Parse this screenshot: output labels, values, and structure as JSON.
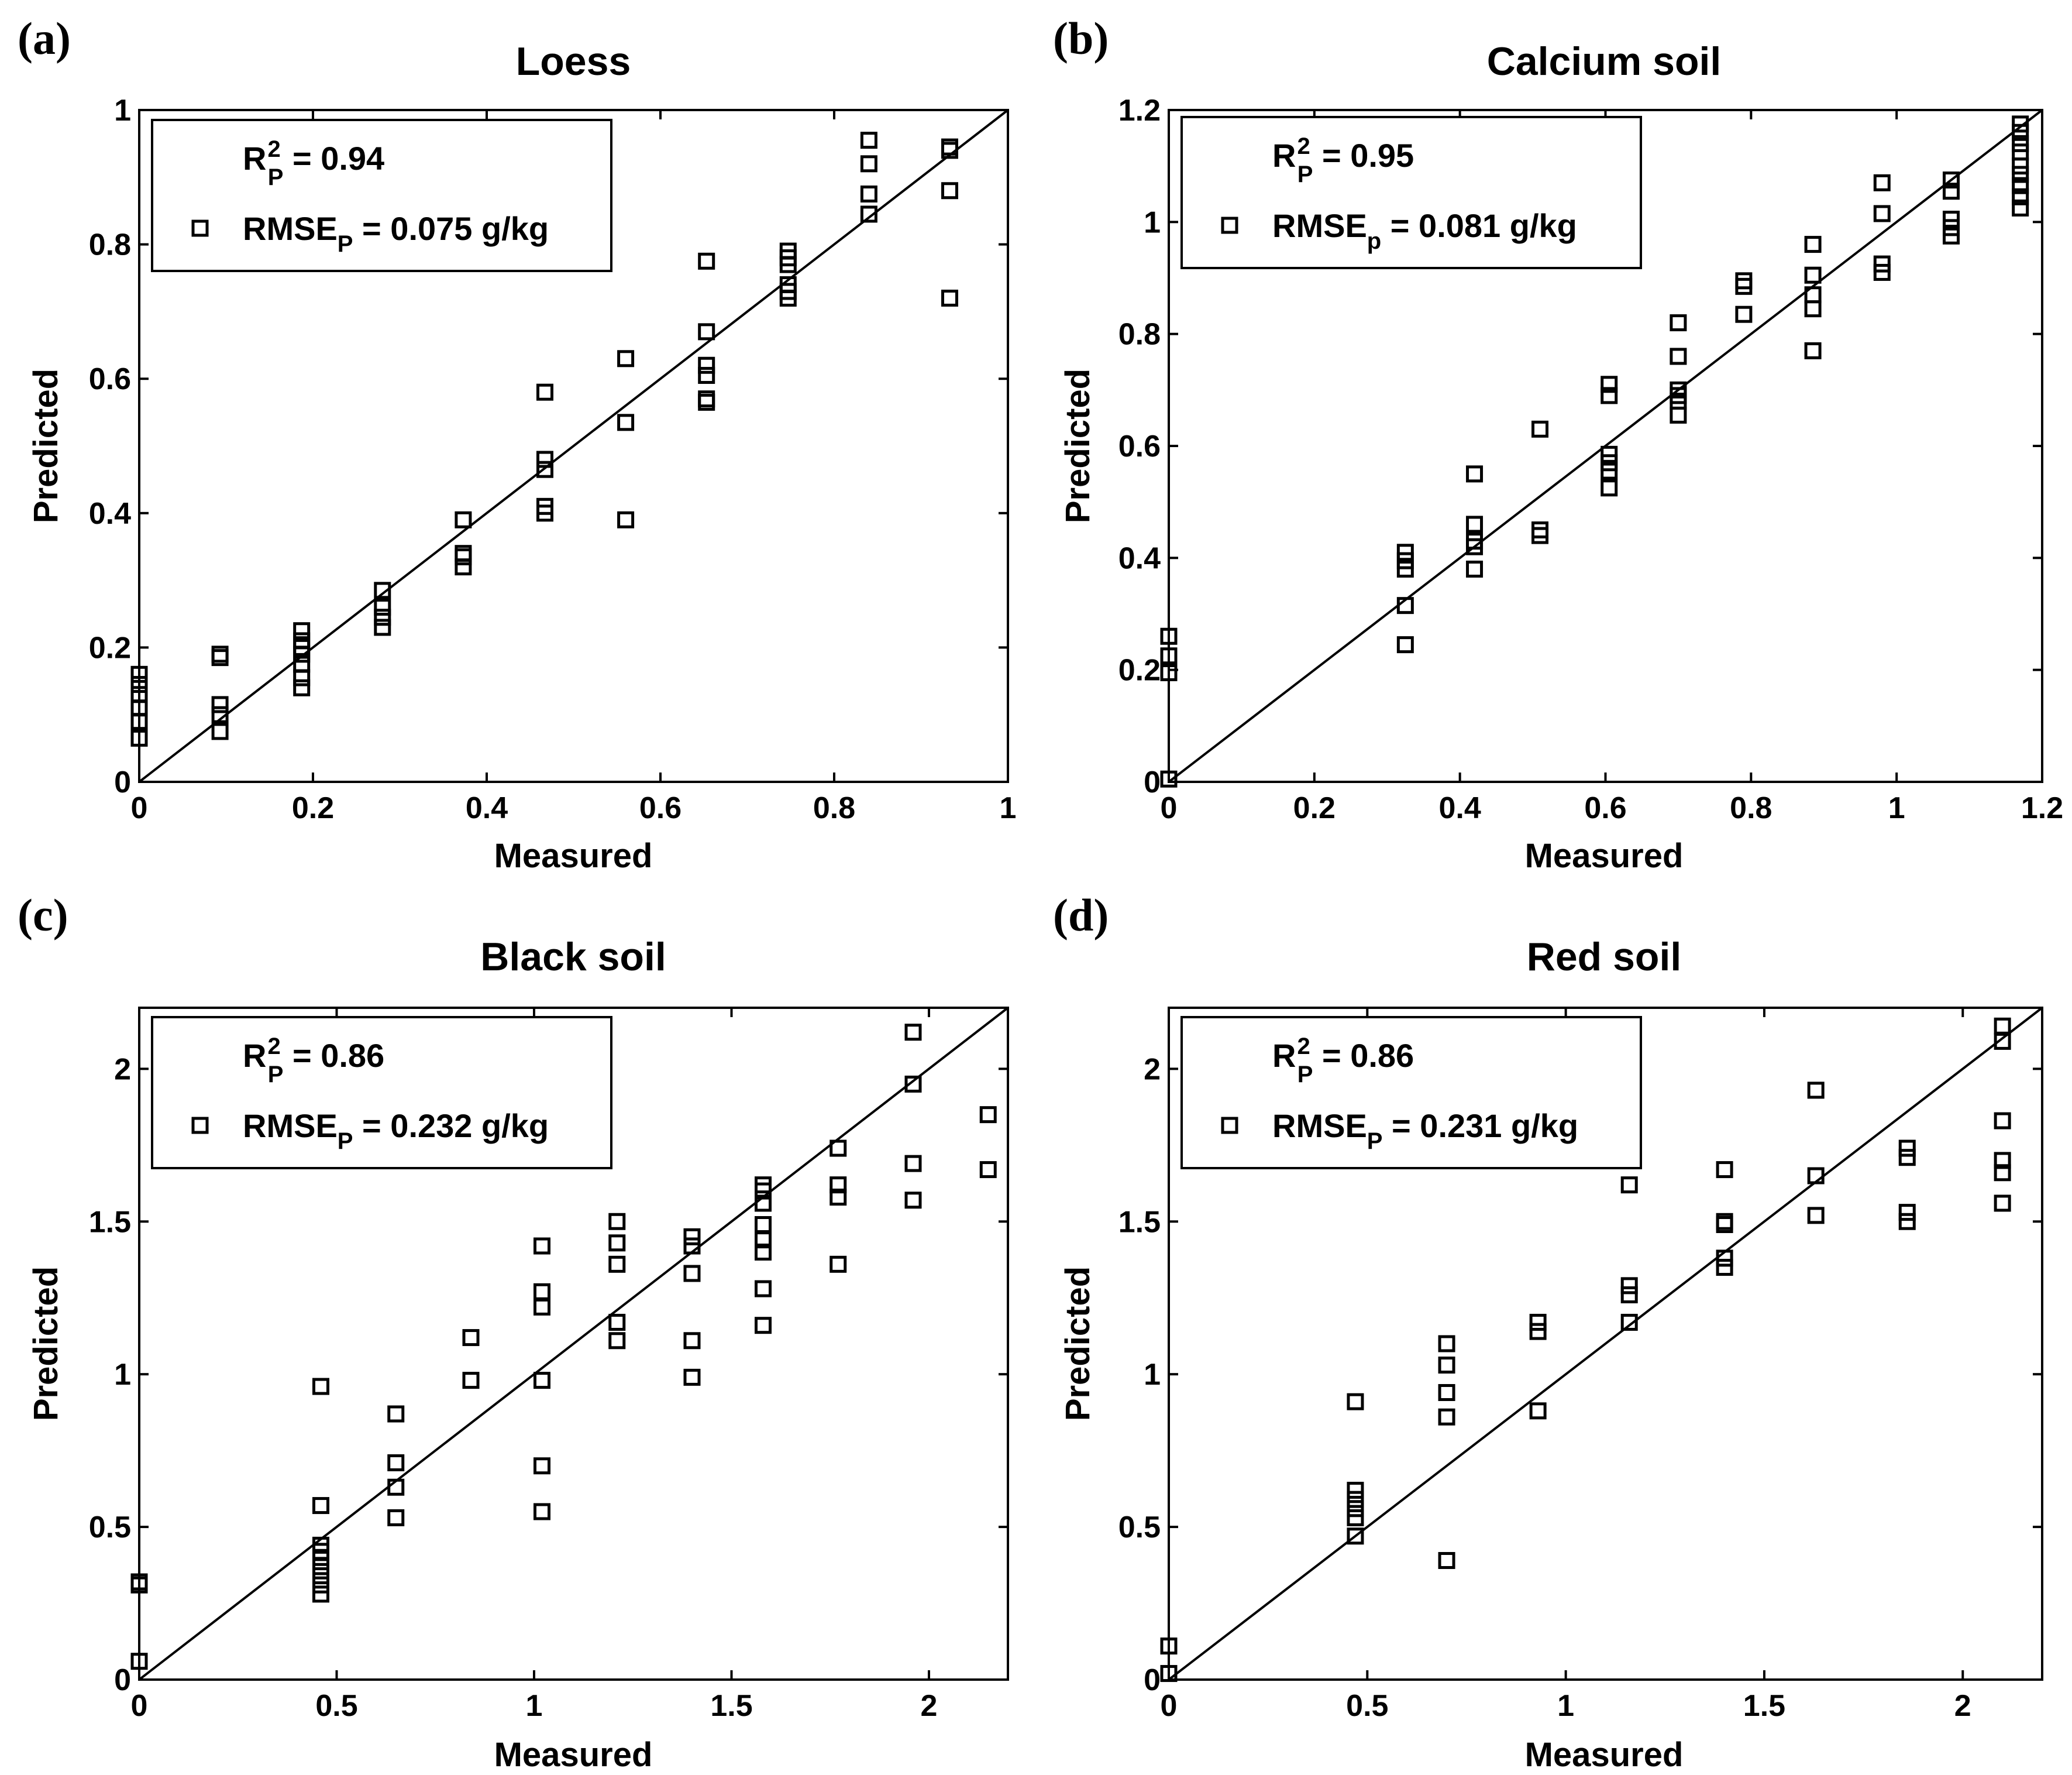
{
  "chart_data": [
    {
      "panel_label": "(a)",
      "title": "Loess",
      "type": "scatter",
      "xlabel": "Measured",
      "ylabel": "Predicted",
      "xlim": [
        0,
        1
      ],
      "ylim": [
        0,
        1
      ],
      "xticks": [
        "0",
        "0.2",
        "0.4",
        "0.6",
        "0.8",
        "1"
      ],
      "yticks": [
        "0",
        "0.2",
        "0.4",
        "0.6",
        "0.8",
        "1"
      ],
      "xtick_values": [
        0,
        0.2,
        0.4,
        0.6,
        0.8,
        1
      ],
      "ytick_values": [
        0,
        0.2,
        0.4,
        0.6,
        0.8,
        1
      ],
      "legend": {
        "r2_main": "R",
        "r2_sup": "2",
        "r2_sub": "P",
        "r2_rest": " = 0.94",
        "rmse_main": "RMSE",
        "rmse_sub": "P",
        "rmse_rest": " = 0.075 g/kg"
      },
      "fit_line": [
        [
          0,
          0
        ],
        [
          1,
          1
        ]
      ],
      "points": [
        [
          0,
          0.065
        ],
        [
          0,
          0.09
        ],
        [
          0,
          0.11
        ],
        [
          0,
          0.13
        ],
        [
          0,
          0.145
        ],
        [
          0,
          0.16
        ],
        [
          0.093,
          0.075
        ],
        [
          0.093,
          0.1
        ],
        [
          0.093,
          0.115
        ],
        [
          0.093,
          0.185
        ],
        [
          0.093,
          0.19
        ],
        [
          0.187,
          0.14
        ],
        [
          0.187,
          0.155
        ],
        [
          0.187,
          0.175
        ],
        [
          0.187,
          0.19
        ],
        [
          0.187,
          0.2
        ],
        [
          0.187,
          0.21
        ],
        [
          0.187,
          0.225
        ],
        [
          0.28,
          0.23
        ],
        [
          0.28,
          0.245
        ],
        [
          0.28,
          0.26
        ],
        [
          0.28,
          0.285
        ],
        [
          0.373,
          0.32
        ],
        [
          0.373,
          0.335
        ],
        [
          0.373,
          0.34
        ],
        [
          0.373,
          0.39
        ],
        [
          0.467,
          0.4
        ],
        [
          0.467,
          0.41
        ],
        [
          0.467,
          0.465
        ],
        [
          0.467,
          0.48
        ],
        [
          0.467,
          0.58
        ],
        [
          0.56,
          0.39
        ],
        [
          0.56,
          0.535
        ],
        [
          0.56,
          0.63
        ],
        [
          0.653,
          0.565
        ],
        [
          0.653,
          0.57
        ],
        [
          0.653,
          0.605
        ],
        [
          0.653,
          0.62
        ],
        [
          0.653,
          0.67
        ],
        [
          0.653,
          0.775
        ],
        [
          0.747,
          0.72
        ],
        [
          0.747,
          0.73
        ],
        [
          0.747,
          0.74
        ],
        [
          0.747,
          0.77
        ],
        [
          0.747,
          0.78
        ],
        [
          0.747,
          0.79
        ],
        [
          0.84,
          0.845
        ],
        [
          0.84,
          0.875
        ],
        [
          0.84,
          0.92
        ],
        [
          0.84,
          0.955
        ],
        [
          0.933,
          0.72
        ],
        [
          0.933,
          0.88
        ],
        [
          0.933,
          0.94
        ],
        [
          0.933,
          0.945
        ]
      ]
    },
    {
      "panel_label": "(b)",
      "title": "Calcium soil",
      "type": "scatter",
      "xlabel": "Measured",
      "ylabel": "Predicted",
      "xlim": [
        0,
        1.2
      ],
      "ylim": [
        0,
        1.2
      ],
      "xticks": [
        "0",
        "0.2",
        "0.4",
        "0.6",
        "0.8",
        "1",
        "1.2"
      ],
      "yticks": [
        "0",
        "0.2",
        "0.4",
        "0.6",
        "0.8",
        "1",
        "1.2"
      ],
      "xtick_values": [
        0,
        0.2,
        0.4,
        0.6,
        0.8,
        1,
        1.2
      ],
      "ytick_values": [
        0,
        0.2,
        0.4,
        0.6,
        0.8,
        1,
        1.2
      ],
      "legend": {
        "r2_main": "R",
        "r2_sup": "2",
        "r2_sub": "P",
        "r2_rest": " = 0.95",
        "rmse_main": "RMSE",
        "rmse_sub": "p",
        "rmse_rest": " = 0.081 g/kg"
      },
      "fit_line": [
        [
          0,
          0
        ],
        [
          1.2,
          1.2
        ]
      ],
      "points": [
        [
          0,
          0.005
        ],
        [
          0,
          0.195
        ],
        [
          0,
          0.225
        ],
        [
          0,
          0.26
        ],
        [
          0.325,
          0.245
        ],
        [
          0.325,
          0.315
        ],
        [
          0.325,
          0.38
        ],
        [
          0.325,
          0.395
        ],
        [
          0.325,
          0.41
        ],
        [
          0.42,
          0.38
        ],
        [
          0.42,
          0.42
        ],
        [
          0.42,
          0.43
        ],
        [
          0.42,
          0.46
        ],
        [
          0.42,
          0.55
        ],
        [
          0.51,
          0.44
        ],
        [
          0.51,
          0.45
        ],
        [
          0.51,
          0.63
        ],
        [
          0.605,
          0.525
        ],
        [
          0.605,
          0.555
        ],
        [
          0.605,
          0.57
        ],
        [
          0.605,
          0.585
        ],
        [
          0.605,
          0.69
        ],
        [
          0.605,
          0.71
        ],
        [
          0.7,
          0.655
        ],
        [
          0.7,
          0.68
        ],
        [
          0.7,
          0.69
        ],
        [
          0.7,
          0.7
        ],
        [
          0.7,
          0.76
        ],
        [
          0.7,
          0.82
        ],
        [
          0.79,
          0.835
        ],
        [
          0.79,
          0.885
        ],
        [
          0.79,
          0.895
        ],
        [
          0.885,
          0.77
        ],
        [
          0.885,
          0.845
        ],
        [
          0.885,
          0.87
        ],
        [
          0.885,
          0.905
        ],
        [
          0.885,
          0.96
        ],
        [
          0.98,
          0.91
        ],
        [
          0.98,
          0.925
        ],
        [
          0.98,
          1.015
        ],
        [
          0.98,
          1.07
        ],
        [
          1.075,
          0.975
        ],
        [
          1.075,
          0.99
        ],
        [
          1.075,
          1.005
        ],
        [
          1.075,
          1.055
        ],
        [
          1.075,
          1.075
        ],
        [
          1.17,
          1.025
        ],
        [
          1.17,
          1.045
        ],
        [
          1.17,
          1.065
        ],
        [
          1.17,
          1.085
        ],
        [
          1.17,
          1.1
        ],
        [
          1.17,
          1.125
        ],
        [
          1.17,
          1.14
        ],
        [
          1.17,
          1.16
        ],
        [
          1.17,
          1.175
        ]
      ]
    },
    {
      "panel_label": "(c)",
      "title": "Black soil",
      "type": "scatter",
      "xlabel": "Measured",
      "ylabel": "Predicted",
      "xlim": [
        0,
        2.2
      ],
      "ylim": [
        0,
        2.2
      ],
      "xticks": [
        "0",
        "0.5",
        "1",
        "1.5",
        "2"
      ],
      "yticks": [
        "0",
        "0.5",
        "1",
        "1.5",
        "2"
      ],
      "xtick_values": [
        0,
        0.5,
        1,
        1.5,
        2
      ],
      "ytick_values": [
        0,
        0.5,
        1,
        1.5,
        2
      ],
      "legend": {
        "r2_main": "R",
        "r2_sup": "2",
        "r2_sub": "P",
        "r2_rest": " = 0.86",
        "rmse_main": "RMSE",
        "rmse_sub": "P",
        "rmse_rest": " = 0.232 g/kg"
      },
      "fit_line": [
        [
          0,
          0
        ],
        [
          2.2,
          2.2
        ]
      ],
      "points": [
        [
          0,
          0.06
        ],
        [
          0,
          0.31
        ],
        [
          0,
          0.32
        ],
        [
          0.46,
          0.28
        ],
        [
          0.46,
          0.31
        ],
        [
          0.46,
          0.34
        ],
        [
          0.46,
          0.37
        ],
        [
          0.46,
          0.4
        ],
        [
          0.46,
          0.42
        ],
        [
          0.46,
          0.44
        ],
        [
          0.46,
          0.57
        ],
        [
          0.46,
          0.96
        ],
        [
          0.65,
          0.53
        ],
        [
          0.65,
          0.63
        ],
        [
          0.65,
          0.71
        ],
        [
          0.65,
          0.87
        ],
        [
          0.84,
          0.98
        ],
        [
          0.84,
          1.12
        ],
        [
          1.02,
          0.55
        ],
        [
          1.02,
          0.7
        ],
        [
          1.02,
          0.98
        ],
        [
          1.02,
          1.22
        ],
        [
          1.02,
          1.27
        ],
        [
          1.02,
          1.42
        ],
        [
          1.21,
          1.11
        ],
        [
          1.21,
          1.17
        ],
        [
          1.21,
          1.36
        ],
        [
          1.21,
          1.43
        ],
        [
          1.21,
          1.5
        ],
        [
          1.4,
          0.99
        ],
        [
          1.4,
          1.11
        ],
        [
          1.4,
          1.33
        ],
        [
          1.4,
          1.42
        ],
        [
          1.4,
          1.45
        ],
        [
          1.58,
          1.16
        ],
        [
          1.58,
          1.28
        ],
        [
          1.58,
          1.4
        ],
        [
          1.58,
          1.44
        ],
        [
          1.58,
          1.49
        ],
        [
          1.58,
          1.56
        ],
        [
          1.58,
          1.6
        ],
        [
          1.58,
          1.62
        ],
        [
          1.77,
          1.36
        ],
        [
          1.77,
          1.58
        ],
        [
          1.77,
          1.62
        ],
        [
          1.77,
          1.74
        ],
        [
          1.96,
          1.57
        ],
        [
          1.96,
          1.69
        ],
        [
          1.96,
          1.95
        ],
        [
          1.96,
          2.12
        ],
        [
          2.15,
          1.67
        ],
        [
          2.15,
          1.85
        ]
      ]
    },
    {
      "panel_label": "(d)",
      "title": "Red soil",
      "type": "scatter",
      "xlabel": "Measured",
      "ylabel": "Predicted",
      "xlim": [
        0,
        2.2
      ],
      "ylim": [
        0,
        2.2
      ],
      "xticks": [
        "0",
        "0.5",
        "1",
        "1.5",
        "2"
      ],
      "yticks": [
        "0",
        "0.5",
        "1",
        "1.5",
        "2"
      ],
      "xtick_values": [
        0,
        0.5,
        1,
        1.5,
        2
      ],
      "ytick_values": [
        0,
        0.5,
        1,
        1.5,
        2
      ],
      "legend": {
        "r2_main": "R",
        "r2_sup": "2",
        "r2_sub": "P",
        "r2_rest": " = 0.86",
        "rmse_main": "RMSE",
        "rmse_sub": "P",
        "rmse_rest": " = 0.231 g/kg"
      },
      "fit_line": [
        [
          0,
          0
        ],
        [
          2.2,
          2.2
        ]
      ],
      "points": [
        [
          0,
          0.02
        ],
        [
          0,
          0.11
        ],
        [
          0.47,
          0.47
        ],
        [
          0.47,
          0.53
        ],
        [
          0.47,
          0.56
        ],
        [
          0.47,
          0.59
        ],
        [
          0.47,
          0.62
        ],
        [
          0.47,
          0.91
        ],
        [
          0.7,
          0.39
        ],
        [
          0.7,
          0.86
        ],
        [
          0.7,
          0.94
        ],
        [
          0.7,
          1.03
        ],
        [
          0.7,
          1.1
        ],
        [
          0.93,
          0.88
        ],
        [
          0.93,
          1.14
        ],
        [
          0.93,
          1.17
        ],
        [
          1.16,
          1.17
        ],
        [
          1.16,
          1.26
        ],
        [
          1.16,
          1.29
        ],
        [
          1.16,
          1.62
        ],
        [
          1.4,
          1.35
        ],
        [
          1.4,
          1.38
        ],
        [
          1.4,
          1.49
        ],
        [
          1.4,
          1.5
        ],
        [
          1.4,
          1.67
        ],
        [
          1.63,
          1.52
        ],
        [
          1.63,
          1.65
        ],
        [
          1.63,
          1.93
        ],
        [
          1.86,
          1.5
        ],
        [
          1.86,
          1.53
        ],
        [
          1.86,
          1.71
        ],
        [
          1.86,
          1.74
        ],
        [
          2.1,
          1.56
        ],
        [
          2.1,
          1.66
        ],
        [
          2.1,
          1.7
        ],
        [
          2.1,
          1.83
        ],
        [
          2.1,
          2.09
        ],
        [
          2.1,
          2.14
        ]
      ]
    }
  ]
}
